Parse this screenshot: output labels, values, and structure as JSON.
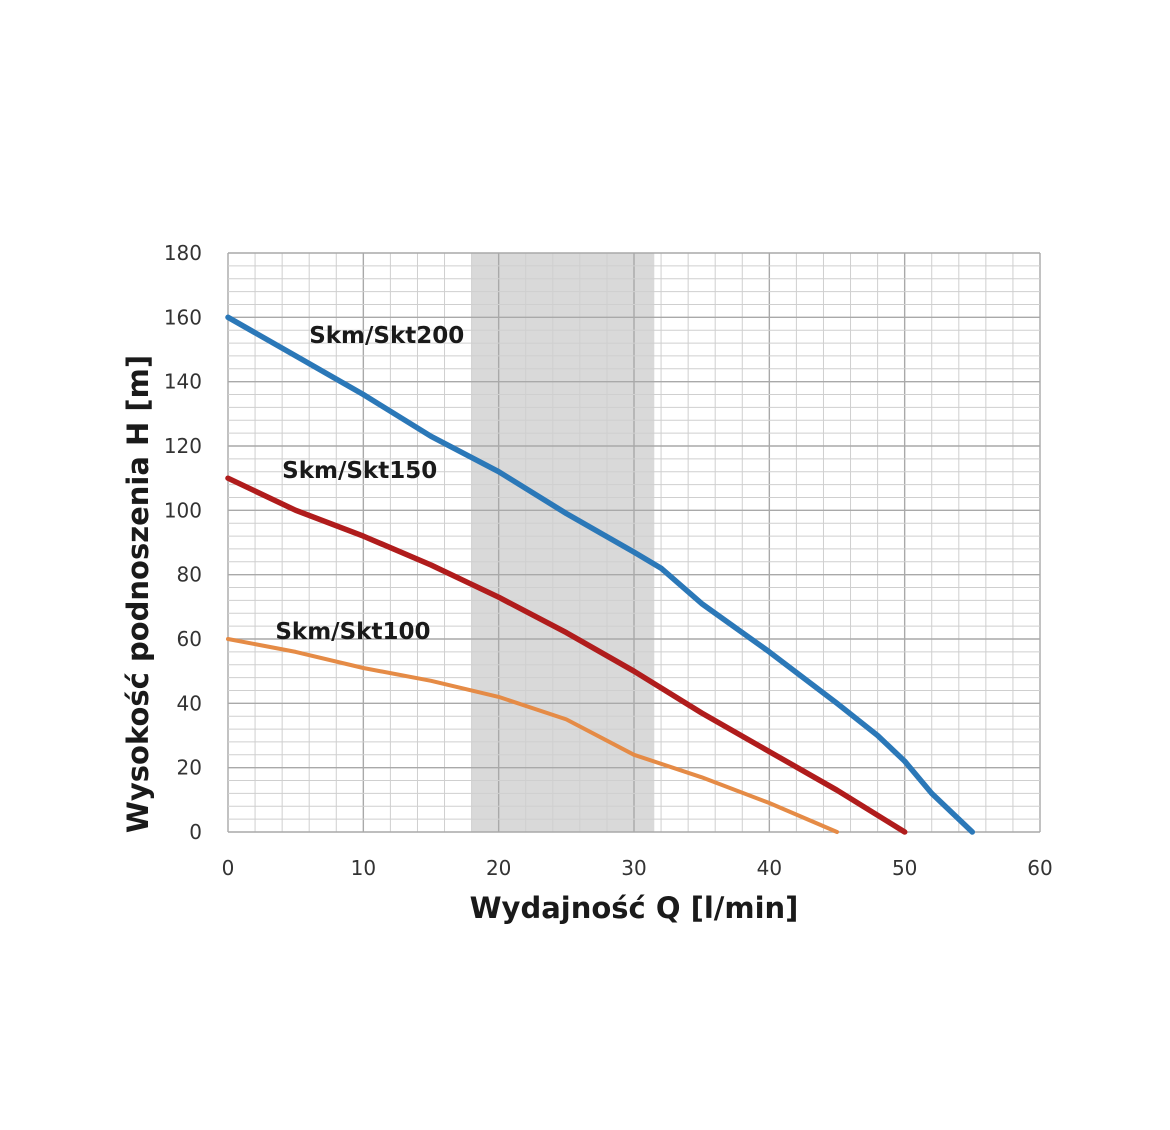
{
  "chart_data": {
    "type": "line",
    "xlabel": "Wydajność Q [l/min]",
    "ylabel": "Wysokość podnoszenia H [m]",
    "xlim": [
      0,
      60
    ],
    "ylim": [
      0,
      180
    ],
    "x_ticks": [
      0,
      10,
      20,
      30,
      40,
      50,
      60
    ],
    "y_ticks": [
      0,
      20,
      40,
      60,
      80,
      100,
      120,
      140,
      160,
      180
    ],
    "x_tick_labels": [
      "0",
      "10",
      "20",
      "30",
      "40",
      "50",
      "60"
    ],
    "y_tick_labels": [
      "0",
      "20",
      "40",
      "60",
      "80",
      "100",
      "120",
      "140",
      "160",
      "180"
    ],
    "grid": true,
    "highlight_band": {
      "x_from": 18,
      "x_to": 31.5,
      "color": "#d9d9d9"
    },
    "series": [
      {
        "name": "Skm/Skt200",
        "color": "#2b78b8",
        "label_at": [
          6,
          152
        ],
        "points": [
          [
            0,
            160
          ],
          [
            5,
            148
          ],
          [
            10,
            136
          ],
          [
            15,
            123
          ],
          [
            20,
            112
          ],
          [
            25,
            99
          ],
          [
            30,
            87
          ],
          [
            32,
            82
          ],
          [
            35,
            71
          ],
          [
            40,
            56
          ],
          [
            45,
            40
          ],
          [
            48,
            30
          ],
          [
            50,
            22
          ],
          [
            52,
            12
          ],
          [
            55,
            0
          ]
        ]
      },
      {
        "name": "Skm/Skt150",
        "color": "#b01c1c",
        "label_at": [
          4,
          110
        ],
        "points": [
          [
            0,
            110
          ],
          [
            5,
            100
          ],
          [
            10,
            92
          ],
          [
            15,
            83
          ],
          [
            18,
            77
          ],
          [
            20,
            73
          ],
          [
            25,
            62
          ],
          [
            30,
            50
          ],
          [
            35,
            37
          ],
          [
            40,
            25
          ],
          [
            45,
            13
          ],
          [
            50,
            0
          ]
        ]
      },
      {
        "name": "Skm/Skt100",
        "color": "#e58b46",
        "label_at": [
          3.5,
          60
        ],
        "points": [
          [
            0,
            60
          ],
          [
            5,
            56
          ],
          [
            10,
            51
          ],
          [
            15,
            47
          ],
          [
            20,
            42
          ],
          [
            25,
            35
          ],
          [
            30,
            24
          ],
          [
            35,
            17
          ],
          [
            40,
            9
          ],
          [
            45,
            0
          ]
        ]
      }
    ]
  }
}
